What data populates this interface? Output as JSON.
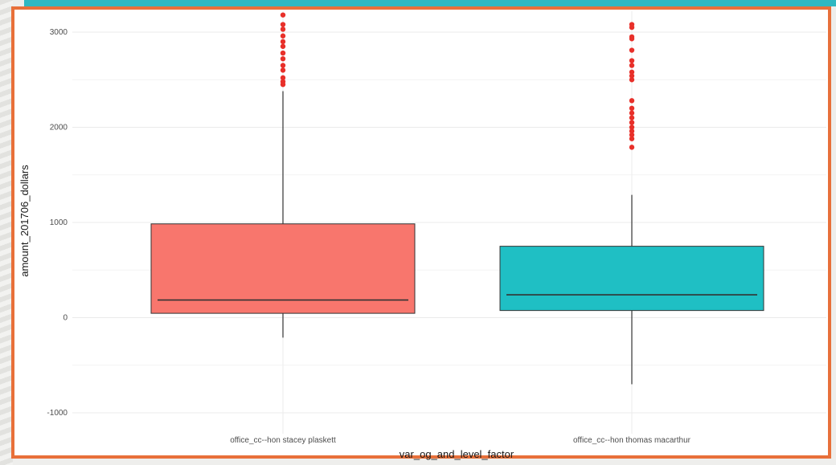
{
  "chart_data": {
    "type": "box",
    "notched": true,
    "xlabel": "var_og_and_level_factor",
    "ylabel": "amount_201706_dollars",
    "ylim": [
      -1150,
      3200
    ],
    "yticks": [
      -1000,
      0,
      1000,
      2000,
      3000
    ],
    "grid": true,
    "categories": [
      "office_cc--hon stacey plaskett",
      "office_cc--hon thomas macarthur"
    ],
    "boxes": [
      {
        "category": "office_cc--hon stacey plaskett",
        "color": "#f8766d",
        "whisker_low": -210,
        "q1": 45,
        "median": 185,
        "q3": 985,
        "whisker_high": 2380,
        "notch_low": 155,
        "notch_high": 225,
        "outliers": [
          2450,
          2480,
          2520,
          2600,
          2650,
          2720,
          2780,
          2850,
          2900,
          2960,
          3030,
          3080,
          3180
        ]
      },
      {
        "category": "office_cc--hon thomas macarthur",
        "color": "#1fbfc4",
        "whisker_low": -700,
        "q1": 75,
        "median": 240,
        "q3": 750,
        "whisker_high": 1290,
        "notch_low": 205,
        "notch_high": 270,
        "outliers": [
          1790,
          1880,
          1920,
          1960,
          2000,
          2050,
          2100,
          2150,
          2200,
          2280,
          2500,
          2540,
          2580,
          2650,
          2700,
          2810,
          2930,
          2950,
          3050,
          3080
        ]
      }
    ],
    "outlier_color": "#e8302a"
  }
}
